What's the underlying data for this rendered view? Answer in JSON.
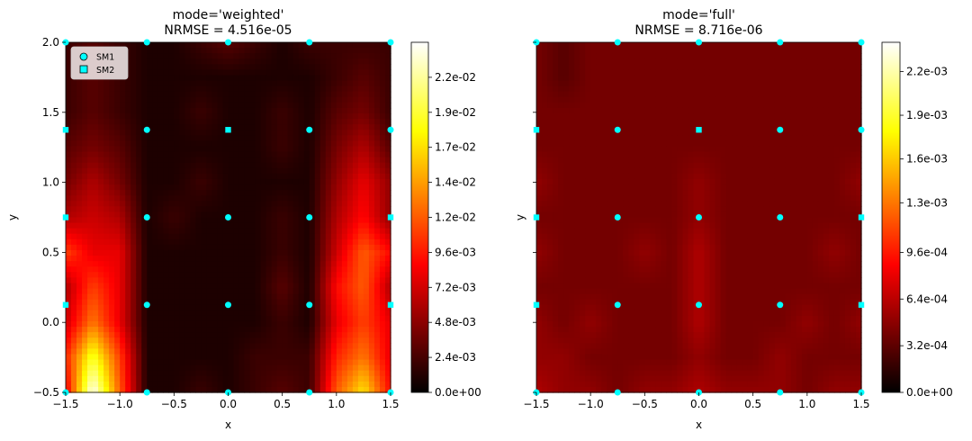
{
  "chart_data": [
    {
      "type": "heatmap",
      "title": "mode='weighted'",
      "subtitle": "NRMSE = 4.516e-05",
      "xlabel": "x",
      "ylabel": "y",
      "xlim": [
        -1.5,
        1.5
      ],
      "ylim": [
        -0.5,
        2.0
      ],
      "xticks": [
        -1.5,
        -1.0,
        -0.5,
        0.0,
        0.5,
        1.0,
        1.5
      ],
      "yticks": [
        -0.5,
        0.0,
        0.5,
        1.0,
        1.5,
        2.0
      ],
      "xtick_labels": [
        "−1.5",
        "−1.0",
        "−0.5",
        "0.0",
        "0.5",
        "1.0",
        "1.5"
      ],
      "ytick_labels": [
        "−0.5",
        "0.0",
        "0.5",
        "1.0",
        "1.5",
        "2.0"
      ],
      "colormap": "hot",
      "clim": [
        0,
        0.024
      ],
      "colorbar_ticks": [
        0,
        0.0024,
        0.0048,
        0.0072,
        0.0096,
        0.012,
        0.0144,
        0.0168,
        0.0192,
        0.0216
      ],
      "colorbar_labels": [
        "0.0e+00",
        "2.4e-03",
        "4.8e-03",
        "7.2e-03",
        "9.6e-03",
        "1.2e-02",
        "1.4e-02",
        "1.7e-02",
        "1.9e-02",
        "2.2e-02"
      ],
      "legend": {
        "placement": "top-left",
        "entries": [
          "SM1",
          "SM2"
        ]
      },
      "sm1_points": [
        [
          -1.5,
          -0.5
        ],
        [
          -0.75,
          -0.5
        ],
        [
          0.0,
          -0.5
        ],
        [
          0.75,
          -0.5
        ],
        [
          1.5,
          -0.5
        ],
        [
          -0.75,
          0.125
        ],
        [
          0.0,
          0.125
        ],
        [
          0.75,
          0.125
        ],
        [
          -0.75,
          0.75
        ],
        [
          0.0,
          0.75
        ],
        [
          0.75,
          0.75
        ],
        [
          -0.75,
          1.375
        ],
        [
          0.75,
          1.375
        ],
        [
          1.5,
          1.375
        ],
        [
          -1.5,
          2.0
        ],
        [
          -0.75,
          2.0
        ],
        [
          0.0,
          2.0
        ],
        [
          0.75,
          2.0
        ],
        [
          1.5,
          2.0
        ]
      ],
      "sm2_points": [
        [
          -1.5,
          0.125
        ],
        [
          1.5,
          0.125
        ],
        [
          -1.5,
          0.75
        ],
        [
          1.5,
          0.75
        ],
        [
          -1.5,
          1.375
        ],
        [
          0.0,
          1.375
        ]
      ],
      "x": [
        -1.5,
        -1.25,
        -1.0,
        -0.75,
        -0.5,
        -0.25,
        0.0,
        0.25,
        0.5,
        0.75,
        1.0,
        1.25,
        1.5
      ],
      "y": [
        -0.5,
        -0.25,
        0.0,
        0.25,
        0.5,
        0.75,
        1.0,
        1.25,
        1.5,
        1.75,
        2.0
      ],
      "z": [
        [
          0.008,
          0.024,
          0.012,
          0.001,
          0.001,
          0.002,
          0.001,
          0.002,
          0.003,
          0.002,
          0.012,
          0.017,
          0.009
        ],
        [
          0.01,
          0.019,
          0.011,
          0.001,
          0.001,
          0.001,
          0.001,
          0.002,
          0.002,
          0.002,
          0.01,
          0.013,
          0.008
        ],
        [
          0.007,
          0.013,
          0.008,
          0.001,
          0.001,
          0.001,
          0.001,
          0.001,
          0.002,
          0.001,
          0.008,
          0.011,
          0.008
        ],
        [
          0.006,
          0.011,
          0.008,
          0.001,
          0.001,
          0.001,
          0.001,
          0.001,
          0.003,
          0.001,
          0.009,
          0.012,
          0.006
        ],
        [
          0.011,
          0.008,
          0.008,
          0.001,
          0.001,
          0.001,
          0.001,
          0.001,
          0.002,
          0.001,
          0.007,
          0.012,
          0.009
        ],
        [
          0.006,
          0.007,
          0.006,
          0.001,
          0.002,
          0.001,
          0.001,
          0.001,
          0.002,
          0.001,
          0.006,
          0.009,
          0.005
        ],
        [
          0.004,
          0.006,
          0.004,
          0.001,
          0.001,
          0.002,
          0.001,
          0.001,
          0.001,
          0.001,
          0.005,
          0.008,
          0.005
        ],
        [
          0.003,
          0.004,
          0.003,
          0.001,
          0.001,
          0.001,
          0.001,
          0.001,
          0.002,
          0.001,
          0.004,
          0.006,
          0.003
        ],
        [
          0.002,
          0.003,
          0.002,
          0.001,
          0.001,
          0.002,
          0.001,
          0.001,
          0.002,
          0.001,
          0.003,
          0.004,
          0.002
        ],
        [
          0.002,
          0.003,
          0.002,
          0.001,
          0.001,
          0.001,
          0.001,
          0.001,
          0.001,
          0.001,
          0.002,
          0.003,
          0.002
        ],
        [
          0.002,
          0.003,
          0.002,
          0.001,
          0.001,
          0.002,
          0.003,
          0.002,
          0.001,
          0.002,
          0.002,
          0.002,
          0.002
        ]
      ]
    },
    {
      "type": "heatmap",
      "title": "mode='full'",
      "subtitle": "NRMSE = 8.716e-06",
      "xlabel": "x",
      "ylabel": "y",
      "xlim": [
        -1.5,
        1.5
      ],
      "ylim": [
        -0.5,
        2.0
      ],
      "xticks": [
        -1.5,
        -1.0,
        -0.5,
        0.0,
        0.5,
        1.0,
        1.5
      ],
      "yticks": [
        -0.5,
        0.0,
        0.5,
        1.0,
        1.5,
        2.0
      ],
      "xtick_labels": [
        "−1.5",
        "−1.0",
        "−0.5",
        "0.0",
        "0.5",
        "1.0",
        "1.5"
      ],
      "ytick_labels": [],
      "colormap": "hot",
      "clim": [
        0,
        0.0024
      ],
      "colorbar_ticks": [
        0,
        0.00032,
        0.00064,
        0.00096,
        0.0013,
        0.0016,
        0.0019,
        0.0022
      ],
      "colorbar_labels": [
        "0.0e+00",
        "3.2e-04",
        "6.4e-04",
        "9.6e-04",
        "1.3e-03",
        "1.6e-03",
        "1.9e-03",
        "2.2e-03"
      ],
      "sm1_points": [
        [
          -1.5,
          -0.5
        ],
        [
          -0.75,
          -0.5
        ],
        [
          0.0,
          -0.5
        ],
        [
          0.75,
          -0.5
        ],
        [
          1.5,
          -0.5
        ],
        [
          -0.75,
          0.125
        ],
        [
          0.0,
          0.125
        ],
        [
          0.75,
          0.125
        ],
        [
          -0.75,
          0.75
        ],
        [
          0.0,
          0.75
        ],
        [
          0.75,
          0.75
        ],
        [
          -0.75,
          1.375
        ],
        [
          0.75,
          1.375
        ],
        [
          1.5,
          1.375
        ],
        [
          -1.5,
          2.0
        ],
        [
          -0.75,
          2.0
        ],
        [
          0.0,
          2.0
        ],
        [
          0.75,
          2.0
        ],
        [
          1.5,
          2.0
        ]
      ],
      "sm2_points": [
        [
          -1.5,
          0.125
        ],
        [
          1.5,
          0.125
        ],
        [
          -1.5,
          0.75
        ],
        [
          1.5,
          0.75
        ],
        [
          -1.5,
          1.375
        ],
        [
          0.0,
          1.375
        ]
      ],
      "x": [
        -1.5,
        -1.25,
        -1.0,
        -0.75,
        -0.5,
        -0.25,
        0.0,
        0.25,
        0.5,
        0.75,
        1.0,
        1.25,
        1.5
      ],
      "y": [
        -0.5,
        -0.25,
        0.0,
        0.25,
        0.5,
        0.75,
        1.0,
        1.25,
        1.5,
        1.75,
        2.0
      ],
      "z": [
        [
          0.0006,
          0.0005,
          0.0005,
          0.0004,
          0.0005,
          0.0005,
          0.0006,
          0.0005,
          0.0005,
          0.0005,
          0.0004,
          0.0005,
          0.0005
        ],
        [
          0.0005,
          0.0005,
          0.0004,
          0.0004,
          0.0004,
          0.0004,
          0.0005,
          0.0004,
          0.0004,
          0.0005,
          0.0004,
          0.0004,
          0.0004
        ],
        [
          0.0005,
          0.0004,
          0.0005,
          0.0004,
          0.0004,
          0.0004,
          0.0006,
          0.0004,
          0.0004,
          0.0004,
          0.0005,
          0.0004,
          0.0005
        ],
        [
          0.0004,
          0.0004,
          0.0004,
          0.0004,
          0.0004,
          0.0004,
          0.0006,
          0.0004,
          0.0004,
          0.0004,
          0.0004,
          0.0004,
          0.0004
        ],
        [
          0.0005,
          0.0004,
          0.0004,
          0.0004,
          0.0005,
          0.0004,
          0.0006,
          0.0004,
          0.0004,
          0.0004,
          0.0004,
          0.0005,
          0.0004
        ],
        [
          0.0004,
          0.0004,
          0.0004,
          0.0004,
          0.0004,
          0.0004,
          0.0005,
          0.0004,
          0.0004,
          0.0004,
          0.0004,
          0.0004,
          0.0004
        ],
        [
          0.0005,
          0.0004,
          0.0004,
          0.0004,
          0.0004,
          0.0004,
          0.0005,
          0.0004,
          0.0004,
          0.0004,
          0.0004,
          0.0004,
          0.0005
        ],
        [
          0.0004,
          0.0004,
          0.0004,
          0.0004,
          0.0004,
          0.0004,
          0.0004,
          0.0004,
          0.0004,
          0.0004,
          0.0004,
          0.0004,
          0.0004
        ],
        [
          0.0004,
          0.0004,
          0.0004,
          0.0004,
          0.0004,
          0.0004,
          0.0004,
          0.0004,
          0.0004,
          0.0004,
          0.0004,
          0.0004,
          0.0004
        ],
        [
          0.0004,
          0.0003,
          0.0004,
          0.0004,
          0.0004,
          0.0004,
          0.0004,
          0.0004,
          0.0004,
          0.0004,
          0.0004,
          0.0004,
          0.0004
        ],
        [
          0.0004,
          0.0003,
          0.0004,
          0.0004,
          0.0004,
          0.0004,
          0.0004,
          0.0004,
          0.0004,
          0.0004,
          0.0004,
          0.0004,
          0.0004
        ]
      ]
    }
  ]
}
